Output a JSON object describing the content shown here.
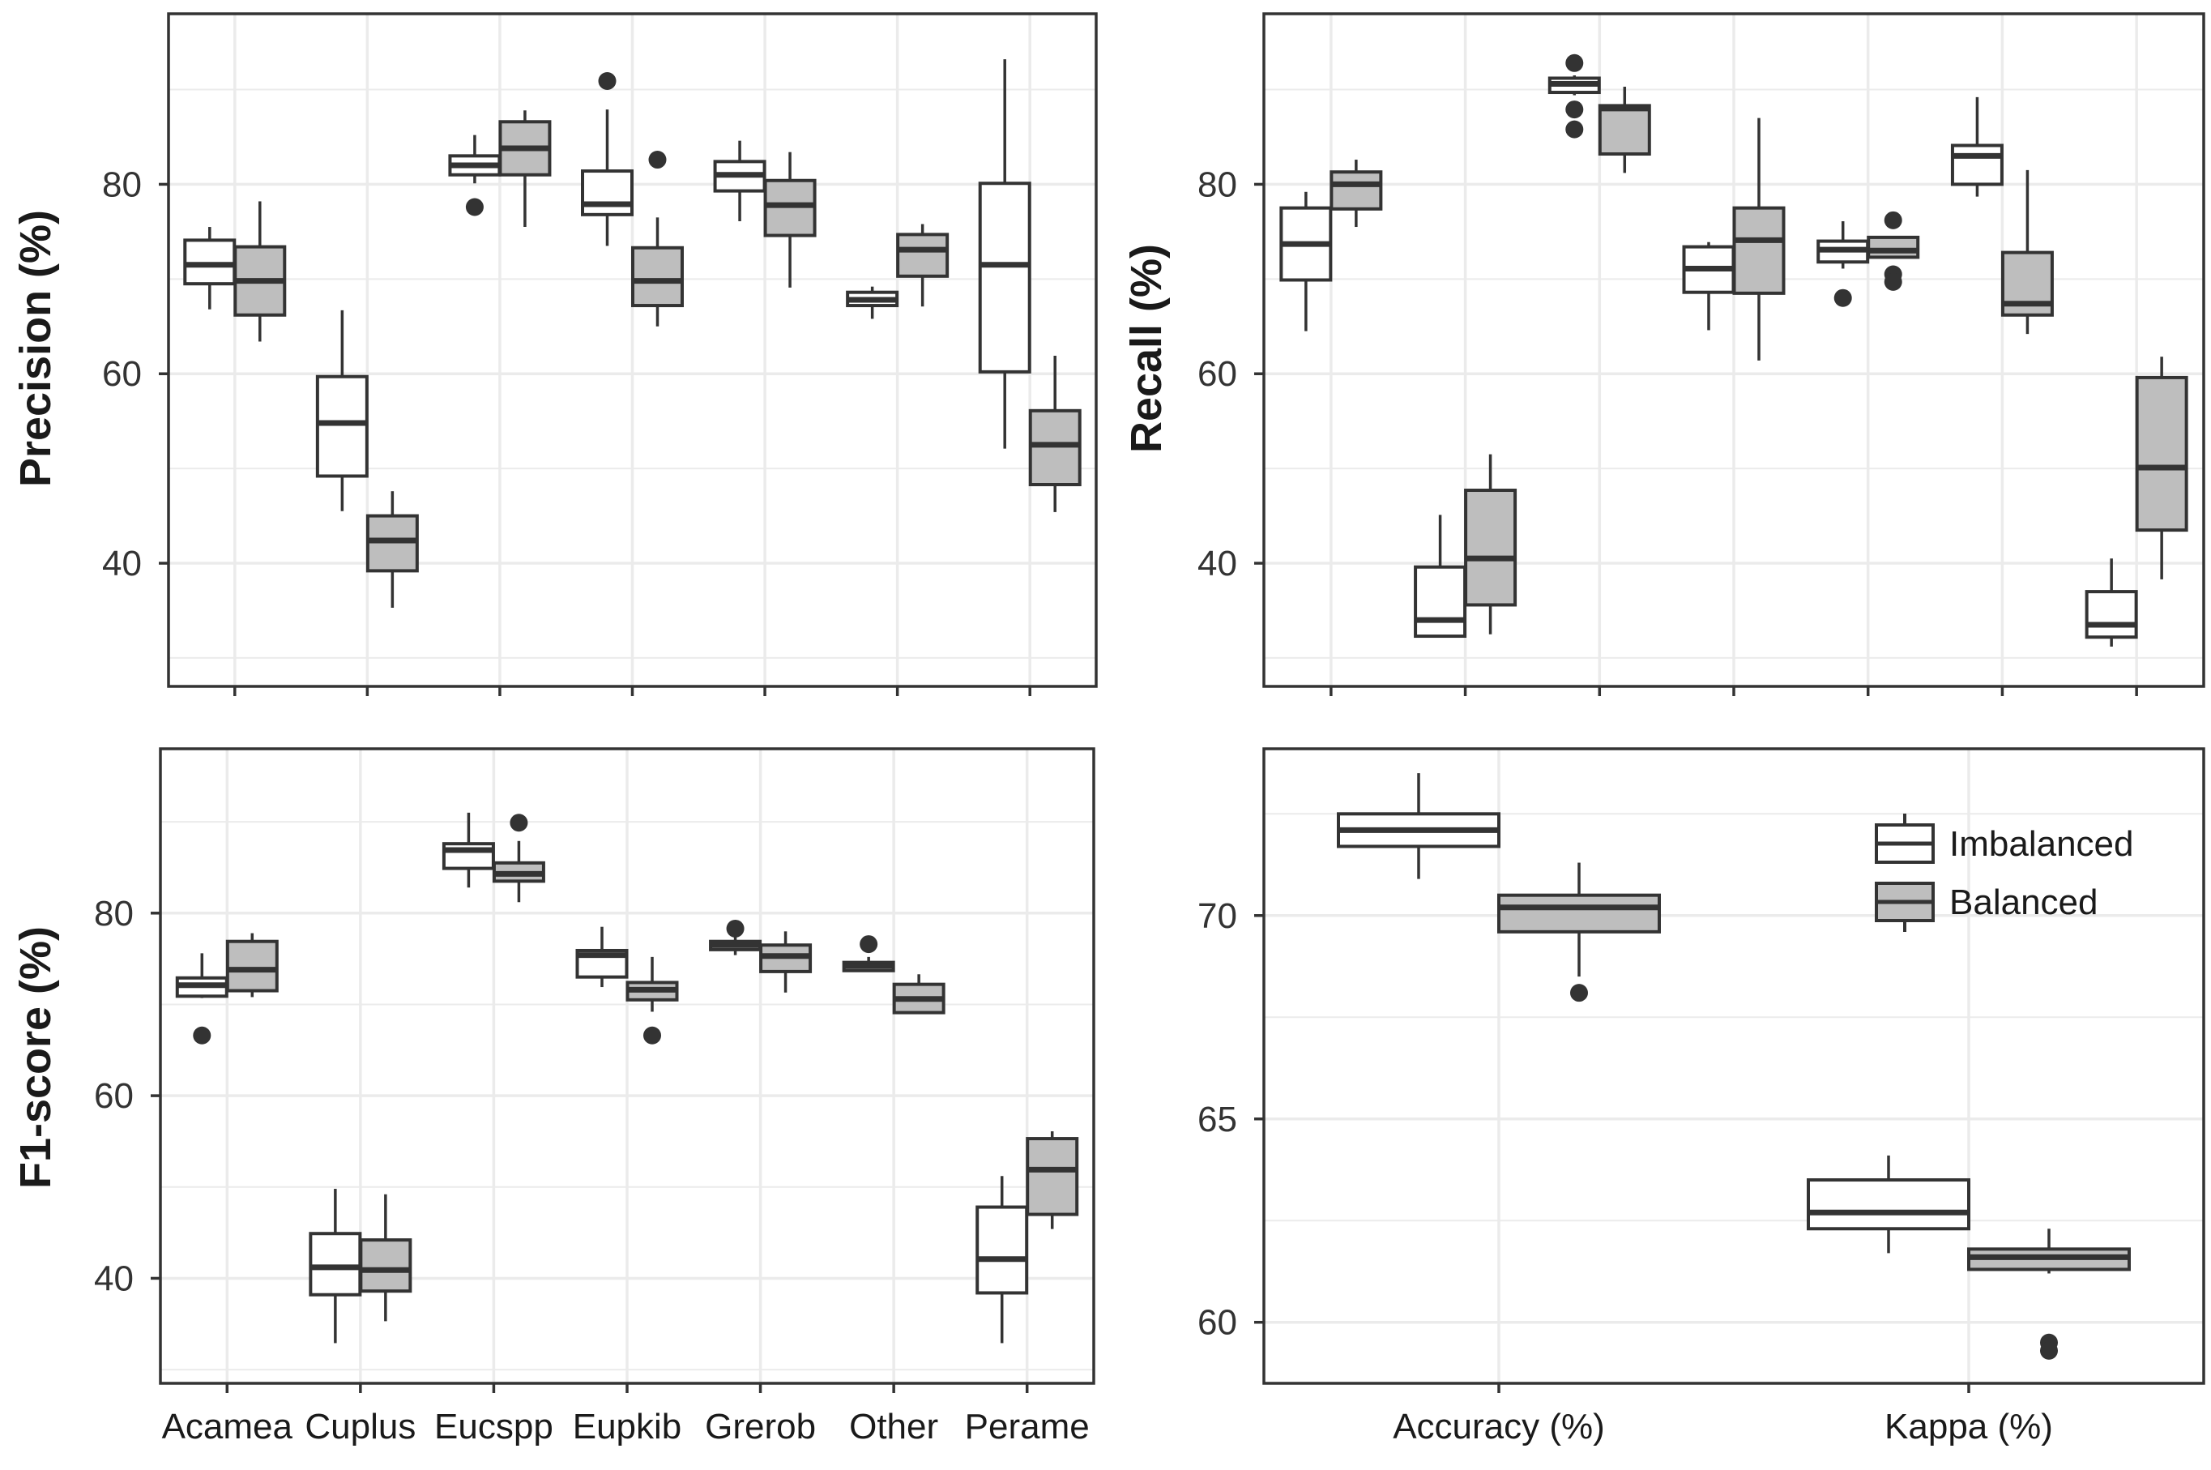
{
  "colors": {
    "imbalanced": "#ffffff",
    "balanced": "#bebebe",
    "stroke": "#333333",
    "grid": "#ebebeb"
  },
  "chart_data": [
    {
      "id": "precision",
      "type": "boxplot",
      "ylabel": "Precision (%)",
      "xlabel": "",
      "ylim": [
        27,
        98
      ],
      "yticks": [
        40,
        60,
        80
      ],
      "categories": [
        "Acamea",
        "Cuplus",
        "Eucspp",
        "Eupkib",
        "Grerob",
        "Other",
        "Perame"
      ],
      "show_x_labels": false,
      "series": [
        {
          "name": "Imbalanced",
          "boxes": [
            {
              "whislo": 66.8,
              "q1": 69.5,
              "med": 71.5,
              "q3": 74.1,
              "whishi": 75.5,
              "fliers": []
            },
            {
              "whislo": 45.5,
              "q1": 49.2,
              "med": 54.8,
              "q3": 59.7,
              "whishi": 66.7,
              "fliers": []
            },
            {
              "whislo": 80.1,
              "q1": 81.0,
              "med": 82.0,
              "q3": 83.0,
              "whishi": 85.2,
              "fliers": [
                77.6
              ]
            },
            {
              "whislo": 73.5,
              "q1": 76.8,
              "med": 77.9,
              "q3": 81.4,
              "whishi": 87.9,
              "fliers": [
                90.9
              ]
            },
            {
              "whislo": 76.1,
              "q1": 79.3,
              "med": 81.0,
              "q3": 82.4,
              "whishi": 84.6,
              "fliers": []
            },
            {
              "whislo": 65.8,
              "q1": 67.2,
              "med": 67.8,
              "q3": 68.6,
              "whishi": 69.2,
              "fliers": []
            },
            {
              "whislo": 52.1,
              "q1": 60.2,
              "med": 71.5,
              "q3": 80.1,
              "whishi": 93.2,
              "fliers": []
            }
          ]
        },
        {
          "name": "Balanced",
          "boxes": [
            {
              "whislo": 63.4,
              "q1": 66.2,
              "med": 69.8,
              "q3": 73.4,
              "whishi": 78.2,
              "fliers": []
            },
            {
              "whislo": 35.3,
              "q1": 39.2,
              "med": 42.4,
              "q3": 45.0,
              "whishi": 47.6,
              "fliers": []
            },
            {
              "whislo": 75.5,
              "q1": 81.0,
              "med": 83.8,
              "q3": 86.6,
              "whishi": 87.8,
              "fliers": []
            },
            {
              "whislo": 65.0,
              "q1": 67.2,
              "med": 69.8,
              "q3": 73.3,
              "whishi": 76.5,
              "fliers": [
                82.6
              ]
            },
            {
              "whislo": 69.1,
              "q1": 74.6,
              "med": 77.8,
              "q3": 80.4,
              "whishi": 83.4,
              "fliers": []
            },
            {
              "whislo": 67.1,
              "q1": 70.3,
              "med": 73.1,
              "q3": 74.7,
              "whishi": 75.8,
              "fliers": []
            },
            {
              "whislo": 45.4,
              "q1": 48.3,
              "med": 52.5,
              "q3": 56.1,
              "whishi": 61.9,
              "fliers": []
            }
          ]
        }
      ]
    },
    {
      "id": "recall",
      "type": "boxplot",
      "ylabel": "Recall (%)",
      "xlabel": "",
      "ylim": [
        27,
        98
      ],
      "yticks": [
        40,
        60,
        80
      ],
      "categories": [
        "Acamea",
        "Cuplus",
        "Eucspp",
        "Eupkib",
        "Grerob",
        "Other",
        "Perame"
      ],
      "show_x_labels": false,
      "series": [
        {
          "name": "Imbalanced",
          "boxes": [
            {
              "whislo": 64.5,
              "q1": 69.9,
              "med": 73.7,
              "q3": 77.5,
              "whishi": 79.2,
              "fliers": []
            },
            {
              "whislo": 32.3,
              "q1": 32.3,
              "med": 34.0,
              "q3": 39.6,
              "whishi": 45.1,
              "fliers": []
            },
            {
              "whislo": 89.4,
              "q1": 89.7,
              "med": 90.6,
              "q3": 91.2,
              "whishi": 91.5,
              "fliers": [
                92.8,
                87.9,
                85.8
              ]
            },
            {
              "whislo": 64.6,
              "q1": 68.6,
              "med": 71.1,
              "q3": 73.4,
              "whishi": 73.9,
              "fliers": []
            },
            {
              "whislo": 71.1,
              "q1": 71.8,
              "med": 73.1,
              "q3": 74.0,
              "whishi": 76.1,
              "fliers": [
                68.0
              ]
            },
            {
              "whislo": 78.7,
              "q1": 80.0,
              "med": 83.0,
              "q3": 84.1,
              "whishi": 89.2,
              "fliers": []
            },
            {
              "whislo": 31.2,
              "q1": 32.2,
              "med": 33.5,
              "q3": 37.0,
              "whishi": 40.5,
              "fliers": []
            }
          ]
        },
        {
          "name": "Balanced",
          "boxes": [
            {
              "whislo": 75.5,
              "q1": 77.4,
              "med": 80.0,
              "q3": 81.3,
              "whishi": 82.6,
              "fliers": []
            },
            {
              "whislo": 32.5,
              "q1": 35.6,
              "med": 40.5,
              "q3": 47.7,
              "whishi": 51.5,
              "fliers": []
            },
            {
              "whislo": 81.2,
              "q1": 83.2,
              "med": 88.0,
              "q3": 88.3,
              "whishi": 90.3,
              "fliers": []
            },
            {
              "whislo": 61.4,
              "q1": 68.5,
              "med": 74.1,
              "q3": 77.5,
              "whishi": 87.0,
              "fliers": []
            },
            {
              "whislo": 72.3,
              "q1": 72.3,
              "med": 73.0,
              "q3": 74.4,
              "whishi": 74.4,
              "fliers": [
                76.2,
                70.5,
                69.7
              ]
            },
            {
              "whislo": 64.2,
              "q1": 66.2,
              "med": 67.4,
              "q3": 72.8,
              "whishi": 81.5,
              "fliers": []
            },
            {
              "whislo": 38.3,
              "q1": 43.5,
              "med": 50.1,
              "q3": 59.6,
              "whishi": 61.8,
              "fliers": []
            }
          ]
        }
      ]
    },
    {
      "id": "f1",
      "type": "boxplot",
      "ylabel": "F1-score (%)",
      "xlabel": "",
      "ylim": [
        28.5,
        98
      ],
      "yticks": [
        40,
        60,
        80
      ],
      "categories": [
        "Acamea",
        "Cuplus",
        "Eucspp",
        "Eupkib",
        "Grerob",
        "Other",
        "Perame"
      ],
      "show_x_labels": true,
      "series": [
        {
          "name": "Imbalanced",
          "boxes": [
            {
              "whislo": 70.7,
              "q1": 70.9,
              "med": 72.1,
              "q3": 72.9,
              "whishi": 75.6,
              "fliers": [
                66.6
              ]
            },
            {
              "whislo": 32.9,
              "q1": 38.2,
              "med": 41.2,
              "q3": 44.9,
              "whishi": 49.8,
              "fliers": []
            },
            {
              "whislo": 82.8,
              "q1": 84.9,
              "med": 86.9,
              "q3": 87.6,
              "whishi": 91.0,
              "fliers": []
            },
            {
              "whislo": 71.9,
              "q1": 73.0,
              "med": 75.4,
              "q3": 75.9,
              "whishi": 78.5,
              "fliers": []
            },
            {
              "whislo": 75.4,
              "q1": 76.0,
              "med": 76.5,
              "q3": 76.9,
              "whishi": 77.6,
              "fliers": [
                78.3
              ]
            },
            {
              "whislo": 73.7,
              "q1": 73.7,
              "med": 74.2,
              "q3": 74.6,
              "whishi": 75.2,
              "fliers": [
                76.6
              ]
            },
            {
              "whislo": 32.9,
              "q1": 38.4,
              "med": 42.1,
              "q3": 47.8,
              "whishi": 51.2,
              "fliers": []
            }
          ]
        },
        {
          "name": "Balanced",
          "boxes": [
            {
              "whislo": 70.8,
              "q1": 71.5,
              "med": 73.8,
              "q3": 76.9,
              "whishi": 77.8,
              "fliers": []
            },
            {
              "whislo": 35.3,
              "q1": 38.6,
              "med": 40.9,
              "q3": 44.2,
              "whishi": 49.2,
              "fliers": []
            },
            {
              "whislo": 81.2,
              "q1": 83.5,
              "med": 84.3,
              "q3": 85.5,
              "whishi": 87.9,
              "fliers": [
                89.9
              ]
            },
            {
              "whislo": 69.2,
              "q1": 70.5,
              "med": 71.6,
              "q3": 72.4,
              "whishi": 75.2,
              "fliers": [
                66.6
              ]
            },
            {
              "whislo": 71.3,
              "q1": 73.6,
              "med": 75.3,
              "q3": 76.5,
              "whishi": 78.0,
              "fliers": []
            },
            {
              "whislo": 69.0,
              "q1": 69.1,
              "med": 70.6,
              "q3": 72.2,
              "whishi": 73.3,
              "fliers": []
            },
            {
              "whislo": 45.4,
              "q1": 47.0,
              "med": 51.9,
              "q3": 55.3,
              "whishi": 56.1,
              "fliers": []
            }
          ]
        }
      ]
    },
    {
      "id": "overall",
      "type": "boxplot",
      "ylabel": "",
      "xlabel": "",
      "ylim": [
        58.5,
        74.1
      ],
      "yticks": [
        60,
        65,
        70
      ],
      "categories": [
        "Accuracy (%)",
        "Kappa (%)"
      ],
      "show_x_labels": true,
      "series": [
        {
          "name": "Imbalanced",
          "boxes": [
            {
              "whislo": 70.9,
              "q1": 71.7,
              "med": 72.1,
              "q3": 72.5,
              "whishi": 73.5,
              "fliers": []
            },
            {
              "whislo": 61.7,
              "q1": 62.3,
              "med": 62.7,
              "q3": 63.5,
              "whishi": 64.1,
              "fliers": []
            }
          ]
        },
        {
          "name": "Balanced",
          "boxes": [
            {
              "whislo": 68.5,
              "q1": 69.6,
              "med": 70.2,
              "q3": 70.5,
              "whishi": 71.3,
              "fliers": [
                68.1
              ]
            },
            {
              "whislo": 61.2,
              "q1": 61.3,
              "med": 61.6,
              "q3": 61.8,
              "whishi": 62.3,
              "fliers": [
                59.5,
                59.3
              ]
            }
          ]
        }
      ],
      "legend": {
        "position": "top-right",
        "labels": [
          "Imbalanced",
          "Balanced"
        ]
      }
    }
  ]
}
